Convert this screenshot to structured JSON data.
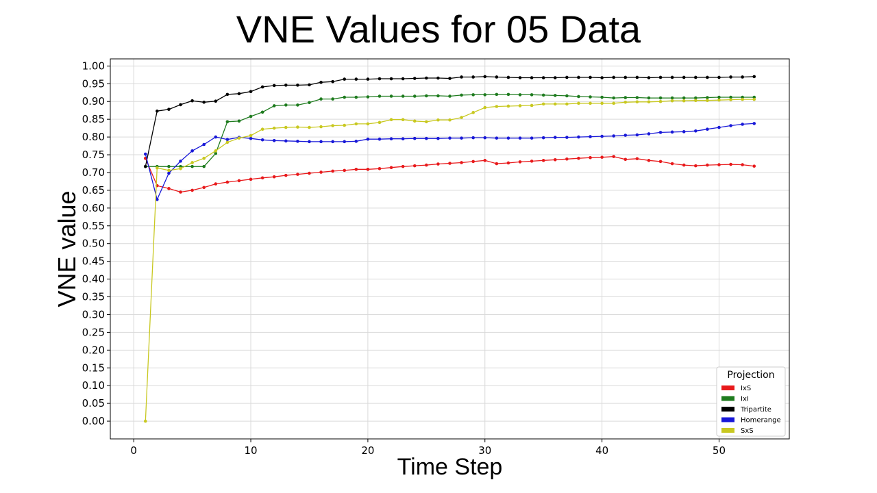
{
  "chart_data": {
    "type": "line",
    "title": "VNE Values for 05 Data",
    "xlabel": "Time Step",
    "ylabel": "VNE value",
    "xlim": [
      -2,
      56
    ],
    "ylim": [
      -0.05,
      1.02
    ],
    "xticks": [
      0,
      10,
      20,
      30,
      40,
      50
    ],
    "xtick_labels": [
      "0",
      "10",
      "20",
      "30",
      "40",
      "50"
    ],
    "yticks": [
      0.0,
      0.05,
      0.1,
      0.15,
      0.2,
      0.25,
      0.3,
      0.35,
      0.4,
      0.45,
      0.5,
      0.55,
      0.6,
      0.65,
      0.7,
      0.75,
      0.8,
      0.85,
      0.9,
      0.95,
      1.0
    ],
    "ytick_labels": [
      "0.00",
      "0.05",
      "0.10",
      "0.15",
      "0.20",
      "0.25",
      "0.30",
      "0.35",
      "0.40",
      "0.45",
      "0.50",
      "0.55",
      "0.60",
      "0.65",
      "0.70",
      "0.75",
      "0.80",
      "0.85",
      "0.90",
      "0.95",
      "1.00"
    ],
    "grid": true,
    "legend": {
      "title": "Projection",
      "position": "lower-right"
    },
    "x": [
      1,
      2,
      3,
      4,
      5,
      6,
      7,
      8,
      9,
      10,
      11,
      12,
      13,
      14,
      15,
      16,
      17,
      18,
      19,
      20,
      21,
      22,
      23,
      24,
      25,
      26,
      27,
      28,
      29,
      30,
      31,
      32,
      33,
      34,
      35,
      36,
      37,
      38,
      39,
      40,
      41,
      42,
      43,
      44,
      45,
      46,
      47,
      48,
      49,
      50,
      51,
      52,
      53
    ],
    "series": [
      {
        "name": "IxS",
        "color": "#e8191b",
        "values": [
          0.74,
          0.663,
          0.655,
          0.645,
          0.65,
          0.658,
          0.668,
          0.673,
          0.677,
          0.681,
          0.685,
          0.688,
          0.692,
          0.695,
          0.698,
          0.701,
          0.704,
          0.706,
          0.709,
          0.709,
          0.711,
          0.714,
          0.717,
          0.719,
          0.721,
          0.724,
          0.726,
          0.728,
          0.731,
          0.734,
          0.725,
          0.727,
          0.73,
          0.732,
          0.734,
          0.736,
          0.738,
          0.74,
          0.742,
          0.743,
          0.745,
          0.737,
          0.739,
          0.734,
          0.731,
          0.725,
          0.721,
          0.719,
          0.721,
          0.722,
          0.723,
          0.722,
          0.718
        ]
      },
      {
        "name": "IxI",
        "color": "#1e7b1e",
        "values": [
          0.717,
          0.717,
          0.717,
          0.717,
          0.717,
          0.717,
          0.754,
          0.843,
          0.845,
          0.858,
          0.87,
          0.888,
          0.89,
          0.89,
          0.897,
          0.907,
          0.907,
          0.912,
          0.912,
          0.913,
          0.915,
          0.915,
          0.915,
          0.915,
          0.916,
          0.916,
          0.915,
          0.918,
          0.919,
          0.919,
          0.92,
          0.92,
          0.919,
          0.919,
          0.918,
          0.917,
          0.916,
          0.914,
          0.913,
          0.912,
          0.91,
          0.911,
          0.911,
          0.91,
          0.91,
          0.91,
          0.91,
          0.91,
          0.911,
          0.912,
          0.912,
          0.912,
          0.912
        ]
      },
      {
        "name": "Tripartite",
        "color": "#000000",
        "values": [
          0.717,
          0.873,
          0.878,
          0.891,
          0.902,
          0.898,
          0.901,
          0.92,
          0.922,
          0.928,
          0.941,
          0.945,
          0.946,
          0.946,
          0.947,
          0.954,
          0.956,
          0.963,
          0.963,
          0.963,
          0.964,
          0.964,
          0.964,
          0.965,
          0.966,
          0.966,
          0.965,
          0.969,
          0.969,
          0.97,
          0.969,
          0.968,
          0.967,
          0.967,
          0.967,
          0.967,
          0.968,
          0.968,
          0.968,
          0.967,
          0.968,
          0.968,
          0.968,
          0.967,
          0.968,
          0.968,
          0.968,
          0.968,
          0.968,
          0.968,
          0.969,
          0.969,
          0.97
        ]
      },
      {
        "name": "Homerange",
        "color": "#1818d8",
        "values": [
          0.752,
          0.624,
          0.698,
          0.732,
          0.761,
          0.779,
          0.8,
          0.793,
          0.799,
          0.796,
          0.792,
          0.79,
          0.789,
          0.788,
          0.787,
          0.787,
          0.787,
          0.787,
          0.788,
          0.794,
          0.794,
          0.795,
          0.795,
          0.796,
          0.796,
          0.796,
          0.797,
          0.797,
          0.798,
          0.798,
          0.797,
          0.797,
          0.797,
          0.797,
          0.798,
          0.799,
          0.799,
          0.8,
          0.801,
          0.802,
          0.803,
          0.805,
          0.806,
          0.809,
          0.813,
          0.814,
          0.815,
          0.817,
          0.822,
          0.827,
          0.832,
          0.836,
          0.838
        ]
      },
      {
        "name": "SxS",
        "color": "#c8c820",
        "values": [
          0.0,
          0.713,
          0.706,
          0.711,
          0.728,
          0.74,
          0.761,
          0.785,
          0.797,
          0.804,
          0.822,
          0.825,
          0.827,
          0.828,
          0.827,
          0.829,
          0.832,
          0.833,
          0.837,
          0.837,
          0.841,
          0.849,
          0.849,
          0.845,
          0.843,
          0.848,
          0.848,
          0.855,
          0.869,
          0.883,
          0.886,
          0.887,
          0.888,
          0.889,
          0.893,
          0.893,
          0.893,
          0.895,
          0.895,
          0.895,
          0.895,
          0.898,
          0.899,
          0.899,
          0.9,
          0.902,
          0.902,
          0.903,
          0.903,
          0.904,
          0.905,
          0.906,
          0.906
        ]
      }
    ]
  }
}
